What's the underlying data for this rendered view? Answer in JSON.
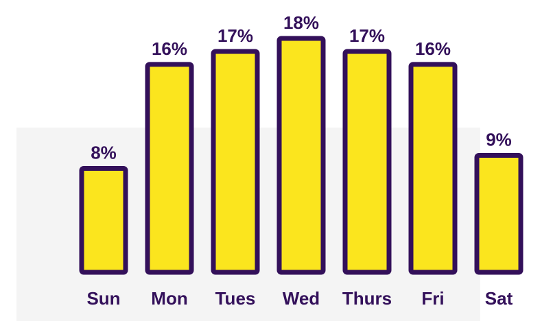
{
  "chart_data": {
    "type": "bar",
    "categories": [
      "Sun",
      "Mon",
      "Tues",
      "Wed",
      "Thurs",
      "Fri",
      "Sat"
    ],
    "values": [
      8,
      16,
      17,
      18,
      17,
      16,
      9
    ],
    "value_labels": [
      "8%",
      "16%",
      "17%",
      "18%",
      "17%",
      "16%",
      "9%"
    ],
    "unit": "%",
    "ylim": [
      0,
      18
    ],
    "grid": false,
    "legend": "none",
    "colors": {
      "bar_fill": "#fbe51e",
      "bar_stroke": "#33105a",
      "text": "#33105a",
      "background_panel": "#f4f4f4"
    }
  }
}
